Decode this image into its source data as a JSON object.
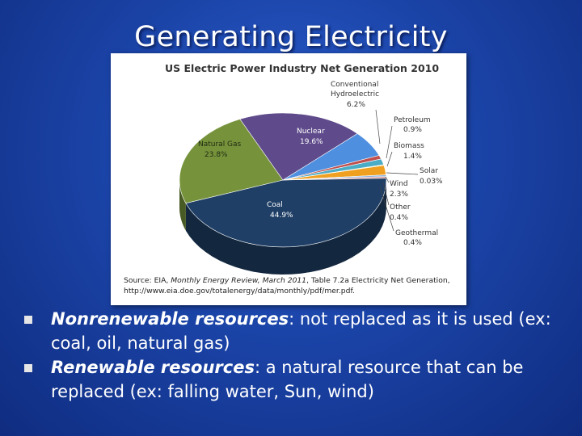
{
  "slide": {
    "title": "Generating Electricity"
  },
  "chart_data": {
    "type": "pie",
    "title": "US Electric Power Industry Net Generation 2010",
    "slices": [
      {
        "label": "Coal",
        "value_text": "44.9%",
        "value": 44.9,
        "color": "#1f3f66"
      },
      {
        "label": "Natural Gas",
        "value_text": "23.8%",
        "value": 23.8,
        "color": "#76933c"
      },
      {
        "label": "Nuclear",
        "value_text": "19.6%",
        "value": 19.6,
        "color": "#5f4b8b"
      },
      {
        "label": "Conventional Hydroelectric",
        "value_text": "6.2%",
        "value": 6.2,
        "color": "#4f8fe0"
      },
      {
        "label": "Petroleum",
        "value_text": "0.9%",
        "value": 0.9,
        "color": "#c0504d"
      },
      {
        "label": "Biomass",
        "value_text": "1.4%",
        "value": 1.4,
        "color": "#4bacc6"
      },
      {
        "label": "Solar",
        "value_text": "0.03%",
        "value": 0.03,
        "color": "#f2dc4b"
      },
      {
        "label": "Wind",
        "value_text": "2.3%",
        "value": 2.3,
        "color": "#f0a020"
      },
      {
        "label": "Other",
        "value_text": "0.4%",
        "value": 0.4,
        "color": "#8db3e2"
      },
      {
        "label": "Geothermal",
        "value_text": "0.4%",
        "value": 0.4,
        "color": "#d99694"
      }
    ],
    "source_line1_a": "Source: EIA, ",
    "source_line1_b": "Monthly Energy Review, March 2011",
    "source_line1_c": ", Table 7.2a Electricity Net Generation,",
    "source_line2": "http://www.eia.doe.gov/totalenergy/data/monthly/pdf/mer.pdf."
  },
  "bullets": [
    {
      "term": "Nonrenewable resources",
      "rest": ": not replaced as it is used (ex: coal, oil, natural gas)"
    },
    {
      "term": "Renewable resources",
      "rest": ": a natural resource that can be replaced (ex: falling water, Sun, wind)"
    }
  ]
}
